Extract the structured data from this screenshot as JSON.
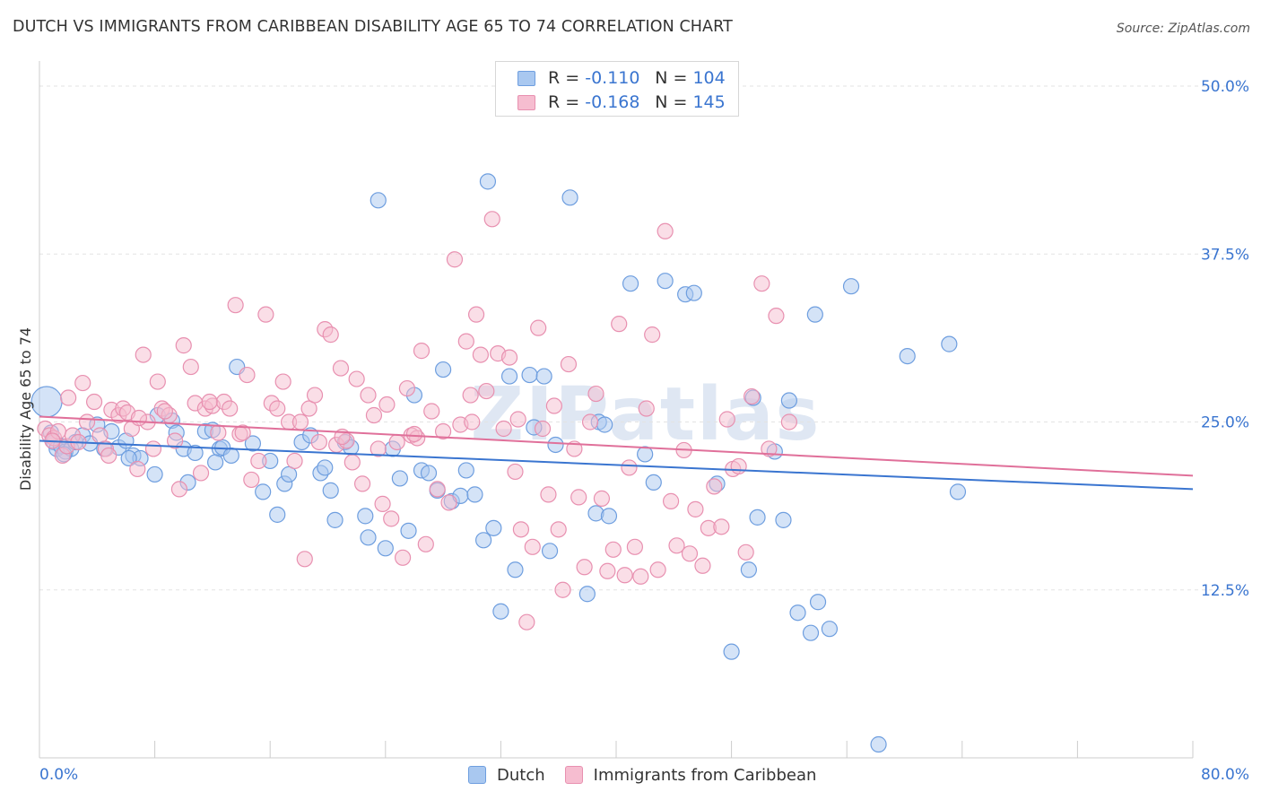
{
  "title": "DUTCH VS IMMIGRANTS FROM CARIBBEAN DISABILITY AGE 65 TO 74 CORRELATION CHART",
  "source": "Source: ZipAtlas.com",
  "watermark": "ZIPatlas",
  "legend": {
    "rows": [
      {
        "r_label": "R =",
        "r_value": "-0.110",
        "n_label": "N =",
        "n_value": "104"
      },
      {
        "r_label": "R =",
        "r_value": "-0.168",
        "n_label": "N =",
        "n_value": "145"
      }
    ]
  },
  "bottom_legend": [
    "Dutch",
    "Immigrants from Caribbean"
  ],
  "colors": {
    "dutch_fill": "#a9c8f0",
    "dutch_stroke": "#6e9edf",
    "dutch_line": "#3a75d0",
    "carib_fill": "#f6bdd0",
    "carib_stroke": "#e890b0",
    "carib_line": "#e0709a",
    "axis_label": "#3a75d0",
    "grid": "#e3e3e3"
  },
  "chart_data": {
    "type": "scatter",
    "title": "DUTCH VS IMMIGRANTS FROM CARIBBEAN DISABILITY AGE 65 TO 74 CORRELATION CHART",
    "xlabel": "",
    "ylabel": "Disability Age 65 to 74",
    "xlim": [
      0,
      80
    ],
    "ylim": [
      0,
      50
    ],
    "x_tick_labels": [
      "0.0%",
      "80.0%"
    ],
    "y_ticks": [
      12.5,
      25.0,
      37.5,
      50.0
    ],
    "y_tick_labels": [
      "12.5%",
      "25.0%",
      "37.5%",
      "50.0%"
    ],
    "grid": "horizontal dashed",
    "legend_position": "top-center",
    "series": [
      {
        "name": "Dutch",
        "r": -0.11,
        "n": 104,
        "trend": {
          "x": [
            0,
            80
          ],
          "y": [
            23.6,
            20.0
          ]
        },
        "points": [
          [
            0.5,
            26.5
          ],
          [
            0.8,
            24.2
          ],
          [
            1.0,
            23.5
          ],
          [
            1.2,
            23.0
          ],
          [
            1.5,
            23.2
          ],
          [
            1.8,
            22.8
          ],
          [
            2.2,
            23.0
          ],
          [
            2.5,
            23.5
          ],
          [
            3.0,
            24.0
          ],
          [
            3.5,
            23.4
          ],
          [
            4.0,
            24.8
          ],
          [
            4.5,
            23.0
          ],
          [
            5.0,
            24.3
          ],
          [
            5.5,
            23.1
          ],
          [
            6.0,
            23.6
          ],
          [
            6.5,
            22.5
          ],
          [
            7.0,
            22.3
          ],
          [
            8.0,
            21.1
          ],
          [
            8.2,
            25.5
          ],
          [
            9.2,
            25.1
          ],
          [
            10.0,
            23.0
          ],
          [
            10.3,
            20.5
          ],
          [
            10.8,
            22.7
          ],
          [
            11.5,
            24.3
          ],
          [
            12.0,
            24.4
          ],
          [
            12.5,
            23.0
          ],
          [
            12.7,
            23.1
          ],
          [
            13.3,
            22.5
          ],
          [
            13.7,
            29.1
          ],
          [
            14.8,
            23.4
          ],
          [
            15.5,
            19.8
          ],
          [
            16.0,
            22.1
          ],
          [
            16.5,
            18.1
          ],
          [
            17.0,
            20.4
          ],
          [
            17.3,
            21.1
          ],
          [
            18.2,
            23.5
          ],
          [
            18.8,
            24.0
          ],
          [
            19.5,
            21.2
          ],
          [
            19.8,
            21.6
          ],
          [
            20.2,
            19.9
          ],
          [
            20.5,
            17.7
          ],
          [
            21.2,
            23.5
          ],
          [
            21.6,
            23.1
          ],
          [
            22.6,
            18.0
          ],
          [
            22.8,
            16.4
          ],
          [
            23.5,
            41.5
          ],
          [
            24.0,
            15.6
          ],
          [
            24.5,
            23.0
          ],
          [
            25.0,
            20.8
          ],
          [
            25.6,
            16.9
          ],
          [
            26.0,
            27.0
          ],
          [
            26.5,
            21.4
          ],
          [
            27.0,
            21.2
          ],
          [
            27.6,
            19.9
          ],
          [
            28.0,
            28.9
          ],
          [
            28.6,
            19.1
          ],
          [
            29.2,
            19.5
          ],
          [
            29.6,
            21.4
          ],
          [
            30.2,
            19.6
          ],
          [
            30.8,
            16.2
          ],
          [
            31.1,
            42.9
          ],
          [
            31.5,
            17.1
          ],
          [
            32.0,
            10.9
          ],
          [
            32.6,
            28.4
          ],
          [
            33.0,
            14.0
          ],
          [
            34.0,
            28.5
          ],
          [
            34.3,
            24.6
          ],
          [
            35.0,
            28.4
          ],
          [
            35.4,
            15.4
          ],
          [
            35.8,
            23.3
          ],
          [
            36.8,
            41.7
          ],
          [
            38.0,
            12.2
          ],
          [
            38.6,
            18.2
          ],
          [
            38.8,
            25.0
          ],
          [
            39.2,
            24.8
          ],
          [
            39.5,
            18.0
          ],
          [
            41.0,
            35.3
          ],
          [
            42.0,
            22.6
          ],
          [
            42.6,
            20.5
          ],
          [
            43.4,
            35.5
          ],
          [
            44.8,
            34.5
          ],
          [
            45.4,
            34.6
          ],
          [
            47.0,
            20.4
          ],
          [
            48.0,
            7.9
          ],
          [
            49.2,
            14.0
          ],
          [
            49.5,
            26.8
          ],
          [
            49.8,
            17.9
          ],
          [
            51.0,
            22.8
          ],
          [
            51.6,
            17.7
          ],
          [
            52.0,
            26.6
          ],
          [
            52.6,
            10.8
          ],
          [
            53.5,
            9.3
          ],
          [
            53.8,
            33.0
          ],
          [
            54.0,
            11.6
          ],
          [
            54.8,
            9.6
          ],
          [
            56.3,
            35.1
          ],
          [
            58.2,
            1.0
          ],
          [
            60.2,
            29.9
          ],
          [
            63.1,
            30.8
          ],
          [
            63.7,
            19.8
          ],
          [
            1.7,
            22.6
          ],
          [
            6.2,
            22.3
          ],
          [
            9.5,
            24.2
          ],
          [
            12.2,
            22.0
          ]
        ]
      },
      {
        "name": "Immigrants from Caribbean",
        "r": -0.168,
        "n": 145,
        "trend": {
          "x": [
            0,
            80
          ],
          "y": [
            25.4,
            21.0
          ]
        },
        "points": [
          [
            0.4,
            24.5
          ],
          [
            0.7,
            24.0
          ],
          [
            1.0,
            23.8
          ],
          [
            1.3,
            24.3
          ],
          [
            1.6,
            22.5
          ],
          [
            1.9,
            23.2
          ],
          [
            2.3,
            24.0
          ],
          [
            2.7,
            23.5
          ],
          [
            3.0,
            27.9
          ],
          [
            3.3,
            25.0
          ],
          [
            3.8,
            26.5
          ],
          [
            4.2,
            24.0
          ],
          [
            4.6,
            23.0
          ],
          [
            5.0,
            25.9
          ],
          [
            5.5,
            25.5
          ],
          [
            5.8,
            26.0
          ],
          [
            6.1,
            25.7
          ],
          [
            6.4,
            24.5
          ],
          [
            6.8,
            21.5
          ],
          [
            7.2,
            30.0
          ],
          [
            7.5,
            25.0
          ],
          [
            7.9,
            23.0
          ],
          [
            8.2,
            28.0
          ],
          [
            8.5,
            26.0
          ],
          [
            9.0,
            25.5
          ],
          [
            9.4,
            23.6
          ],
          [
            9.7,
            20.0
          ],
          [
            10.0,
            30.7
          ],
          [
            10.5,
            29.1
          ],
          [
            10.8,
            26.4
          ],
          [
            11.2,
            21.2
          ],
          [
            11.5,
            26.0
          ],
          [
            12.0,
            26.2
          ],
          [
            12.4,
            24.2
          ],
          [
            12.8,
            26.5
          ],
          [
            13.2,
            26.0
          ],
          [
            13.6,
            33.7
          ],
          [
            13.9,
            24.1
          ],
          [
            14.4,
            28.5
          ],
          [
            14.7,
            20.7
          ],
          [
            15.2,
            22.1
          ],
          [
            15.7,
            33.0
          ],
          [
            16.1,
            26.4
          ],
          [
            16.5,
            26.0
          ],
          [
            16.9,
            28.0
          ],
          [
            17.3,
            25.0
          ],
          [
            17.7,
            22.1
          ],
          [
            18.1,
            25.0
          ],
          [
            18.4,
            14.8
          ],
          [
            18.7,
            26.0
          ],
          [
            19.1,
            27.0
          ],
          [
            19.4,
            23.5
          ],
          [
            19.8,
            31.9
          ],
          [
            20.2,
            31.5
          ],
          [
            20.6,
            23.3
          ],
          [
            20.9,
            29.0
          ],
          [
            21.3,
            23.6
          ],
          [
            21.7,
            22.0
          ],
          [
            22.0,
            28.2
          ],
          [
            22.4,
            20.4
          ],
          [
            22.8,
            27.0
          ],
          [
            23.2,
            25.5
          ],
          [
            23.5,
            23.0
          ],
          [
            23.8,
            18.9
          ],
          [
            24.1,
            26.3
          ],
          [
            24.4,
            17.8
          ],
          [
            24.8,
            23.5
          ],
          [
            25.2,
            14.9
          ],
          [
            25.5,
            27.5
          ],
          [
            25.8,
            24.0
          ],
          [
            26.2,
            23.8
          ],
          [
            26.5,
            30.3
          ],
          [
            26.8,
            15.9
          ],
          [
            27.2,
            25.8
          ],
          [
            27.6,
            20.0
          ],
          [
            28.0,
            24.3
          ],
          [
            28.4,
            19.0
          ],
          [
            28.8,
            37.1
          ],
          [
            29.2,
            24.8
          ],
          [
            29.6,
            31.0
          ],
          [
            29.9,
            27.0
          ],
          [
            30.3,
            33.0
          ],
          [
            30.6,
            30.0
          ],
          [
            31.0,
            27.3
          ],
          [
            31.4,
            40.1
          ],
          [
            31.8,
            30.1
          ],
          [
            32.2,
            24.5
          ],
          [
            32.6,
            29.8
          ],
          [
            33.0,
            21.3
          ],
          [
            33.4,
            17.0
          ],
          [
            33.8,
            10.1
          ],
          [
            34.2,
            15.7
          ],
          [
            34.6,
            32.0
          ],
          [
            34.9,
            24.5
          ],
          [
            35.3,
            19.6
          ],
          [
            35.7,
            26.2
          ],
          [
            36.0,
            17.0
          ],
          [
            36.3,
            12.5
          ],
          [
            36.7,
            29.3
          ],
          [
            37.1,
            23.0
          ],
          [
            37.4,
            19.4
          ],
          [
            37.8,
            14.2
          ],
          [
            38.2,
            25.0
          ],
          [
            38.6,
            27.1
          ],
          [
            39.0,
            19.3
          ],
          [
            39.4,
            13.9
          ],
          [
            39.8,
            15.5
          ],
          [
            40.2,
            32.3
          ],
          [
            40.6,
            13.6
          ],
          [
            40.9,
            21.6
          ],
          [
            41.3,
            15.7
          ],
          [
            41.7,
            13.5
          ],
          [
            42.1,
            26.0
          ],
          [
            42.5,
            31.5
          ],
          [
            42.9,
            14.0
          ],
          [
            43.4,
            39.2
          ],
          [
            43.8,
            19.1
          ],
          [
            44.2,
            15.8
          ],
          [
            44.7,
            22.9
          ],
          [
            45.1,
            15.2
          ],
          [
            45.5,
            18.5
          ],
          [
            46.0,
            14.3
          ],
          [
            46.4,
            17.1
          ],
          [
            46.8,
            20.2
          ],
          [
            47.3,
            17.2
          ],
          [
            47.7,
            25.2
          ],
          [
            48.1,
            21.5
          ],
          [
            48.5,
            21.7
          ],
          [
            49.0,
            15.3
          ],
          [
            49.4,
            26.9
          ],
          [
            50.1,
            35.3
          ],
          [
            50.6,
            23.0
          ],
          [
            51.1,
            32.9
          ],
          [
            52.0,
            25.0
          ],
          [
            0.9,
            23.6
          ],
          [
            2.0,
            26.8
          ],
          [
            4.8,
            22.5
          ],
          [
            6.9,
            25.3
          ],
          [
            8.7,
            25.8
          ],
          [
            11.8,
            26.5
          ],
          [
            14.1,
            24.2
          ],
          [
            21.0,
            23.9
          ],
          [
            26.0,
            24.1
          ],
          [
            30.0,
            25.0
          ],
          [
            33.2,
            25.2
          ]
        ]
      }
    ]
  }
}
